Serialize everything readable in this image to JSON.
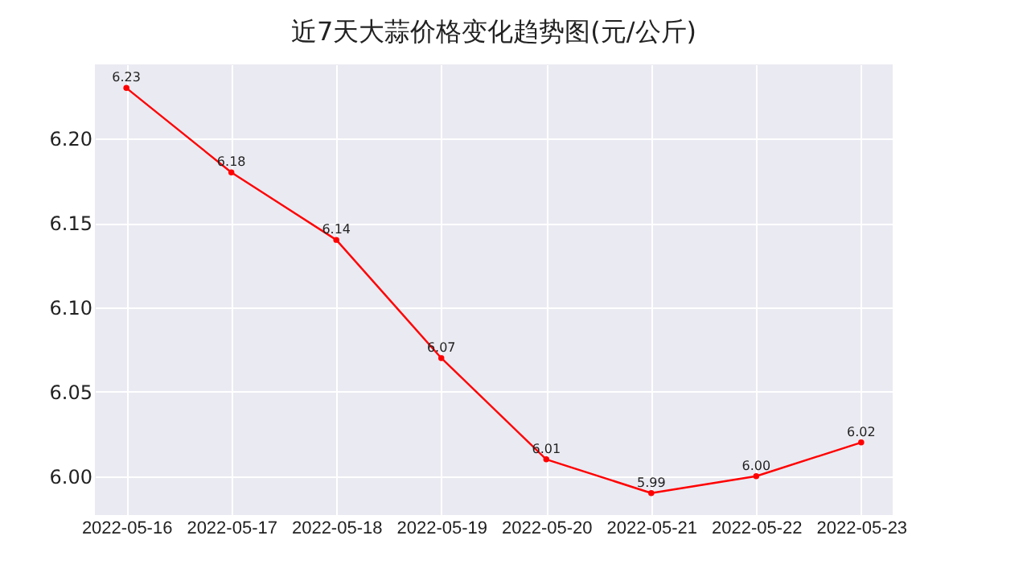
{
  "chart_data": {
    "type": "line",
    "title": "近7天大蒜价格变化趋势图(元/公斤)",
    "categories": [
      "2022-05-16",
      "2022-05-17",
      "2022-05-18",
      "2022-05-19",
      "2022-05-20",
      "2022-05-21",
      "2022-05-22",
      "2022-05-23"
    ],
    "series": [
      {
        "color": "#ff0000",
        "values": [
          6.23,
          6.18,
          6.14,
          6.07,
          6.01,
          5.99,
          6.0,
          6.02
        ],
        "value_labels": [
          "6.23",
          "6.18",
          "6.14",
          "6.07",
          "6.01",
          "5.99",
          "6.00",
          "6.02"
        ]
      }
    ],
    "ylim": [
      5.977,
      6.244
    ],
    "yticks": [
      {
        "value": 6.0,
        "label": "6.00"
      },
      {
        "value": 6.05,
        "label": "6.05"
      },
      {
        "value": 6.1,
        "label": "6.10"
      },
      {
        "value": 6.15,
        "label": "6.15"
      },
      {
        "value": 6.2,
        "label": "6.20"
      }
    ],
    "grid": true,
    "marker": "circle",
    "line_style": "solid"
  }
}
